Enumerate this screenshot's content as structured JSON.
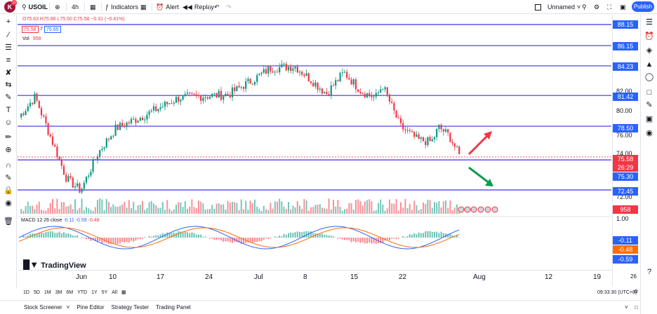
{
  "toolbar": {
    "logo_text": "K",
    "badge": "11",
    "symbol": "USOIL",
    "interval": "4h",
    "indicators_label": "Indicators",
    "alert_label": "Alert",
    "replay_label": "Replay",
    "layout_name": "Unnamed",
    "publish_label": "Publish"
  },
  "legend": {
    "ohlc": "O75.63  H75.86  L75.50  C75.58  −0.31 (−0.41%)",
    "bid": "75.58",
    "ask_marker": "7",
    "ask": "75.65",
    "vol_label": "Vol",
    "vol_value": "958"
  },
  "price_axis": {
    "levels": [
      "88.15",
      "86.15",
      "84.23",
      "81.42",
      "78.50",
      "75.30",
      "72.45"
    ],
    "ticks": [
      "82.00",
      "80.00",
      "76.00",
      "74.00",
      "72.00",
      "1.00"
    ],
    "current_price": "75.58",
    "countdown": "26:29",
    "volume_tag": "958",
    "macd_tags": [
      "-0.11",
      "-0.48",
      "-0.59"
    ]
  },
  "macd": {
    "label": "MACD 12 26 close",
    "v1": "-0.11",
    "v2": "-0.59",
    "v3": "-0.48"
  },
  "time_axis": {
    "labels": [
      "Jun",
      "10",
      "17",
      "24",
      "Jul",
      "8",
      "15",
      "22",
      "Aug",
      "12",
      "19",
      "26"
    ],
    "clock": "09:33:30 (UTC+8)"
  },
  "ranges": [
    "1D",
    "5D",
    "1M",
    "3M",
    "6M",
    "YTD",
    "1Y",
    "5Y",
    "All"
  ],
  "bottom_panel": {
    "items": [
      "Stock Screener",
      "Pine Editor",
      "Strategy Tester",
      "Trading Panel"
    ]
  },
  "brand": "TradingView",
  "colors": {
    "accent": "#2962ff",
    "up": "#089981",
    "down": "#f23645",
    "level_line": "#3b30e0"
  }
}
